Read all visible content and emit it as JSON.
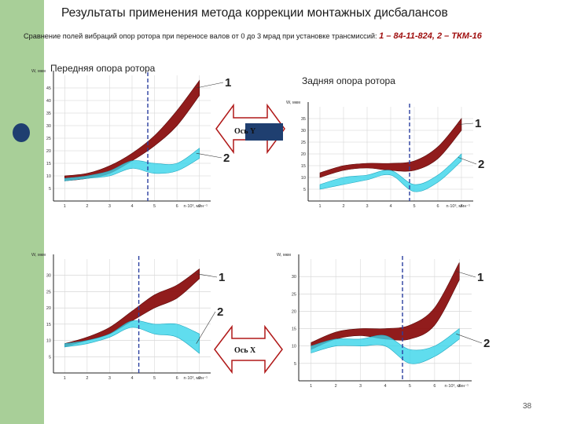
{
  "slide": {
    "title": "Результаты применения метода коррекции монтажных дисбалансов",
    "subtitle_text": "Сравнение полей вибраций опор ротора при переносе валов от 0 до 3 мрад при установке трансмиссий: ",
    "subtitle_series_1_num": "1",
    "subtitle_series_1_name": " – 84-11-824, ",
    "subtitle_series_2_num": "2",
    "subtitle_series_2_name": " – ТКМ-16",
    "front_support_label": "Передняя опора ротора",
    "rear_support_label": "Задняя опора ротора",
    "axis_y_label_top": "Ось Y",
    "axis_x_label_bottom": "Ось X",
    "page_number": "38"
  },
  "colors": {
    "sidebar": "#a8cf98",
    "series_1_band": "#8b1010",
    "series_2_band": "#38d4ea",
    "arrow_fill": "#ffffff",
    "arrow_stroke": "#b01818"
  },
  "chart_data": [
    {
      "type": "area",
      "panel": "top-left",
      "y_unit_label": "W, мкм",
      "y_ticks": [
        "5",
        "10",
        "15",
        "20",
        "25",
        "30",
        "35",
        "40",
        "45"
      ],
      "x_ticks": [
        "1",
        "2",
        "3",
        "4",
        "5",
        "6",
        "7"
      ],
      "x_unit_label": "n·10³, мин⁻¹",
      "ylim": [
        0,
        50
      ],
      "xlim": [
        0.5,
        7.5
      ],
      "series": [
        {
          "name": "1",
          "x": [
            1,
            2,
            3,
            4,
            5,
            6,
            7
          ],
          "lower": [
            8,
            9,
            11,
            16,
            22,
            30,
            42
          ],
          "upper": [
            10,
            11,
            14,
            19,
            26,
            36,
            48
          ]
        },
        {
          "name": "2",
          "x": [
            1,
            2,
            3,
            4,
            5,
            6,
            7
          ],
          "lower": [
            8,
            9,
            10,
            13,
            11,
            12,
            17
          ],
          "upper": [
            9,
            10,
            12,
            16,
            15,
            15,
            21
          ]
        }
      ]
    },
    {
      "type": "area",
      "panel": "top-right",
      "y_unit_label": "W, мкм",
      "y_ticks": [
        "5",
        "10",
        "15",
        "20",
        "25",
        "30",
        "35"
      ],
      "x_ticks": [
        "1",
        "2",
        "3",
        "4",
        "5",
        "6",
        "7"
      ],
      "x_unit_label": "n·10³, мин⁻¹",
      "ylim": [
        0,
        40
      ],
      "xlim": [
        0.5,
        7.5
      ],
      "series": [
        {
          "name": "1",
          "x": [
            1,
            2,
            3,
            4,
            5,
            6,
            7
          ],
          "lower": [
            10,
            13,
            14,
            13,
            13,
            18,
            30
          ],
          "upper": [
            12,
            15,
            16,
            16,
            17,
            23,
            35
          ]
        },
        {
          "name": "2",
          "x": [
            1,
            2,
            3,
            4,
            5,
            6,
            7
          ],
          "lower": [
            5,
            7,
            9,
            11,
            4,
            8,
            17
          ],
          "upper": [
            7,
            10,
            11,
            13,
            7,
            11,
            20
          ]
        }
      ]
    },
    {
      "type": "area",
      "panel": "bottom-left",
      "y_unit_label": "W, мкм",
      "y_ticks": [
        "5",
        "10",
        "15",
        "20",
        "25",
        "30"
      ],
      "x_ticks": [
        "1",
        "2",
        "3",
        "4",
        "5",
        "6",
        "7"
      ],
      "x_unit_label": "n·10³, мин⁻¹",
      "ylim": [
        0,
        35
      ],
      "xlim": [
        0.5,
        7.5
      ],
      "series": [
        {
          "name": "1",
          "x": [
            1,
            2,
            3,
            4,
            5,
            6,
            7
          ],
          "lower": [
            8,
            10,
            12,
            16,
            20,
            23,
            29
          ],
          "upper": [
            9,
            11,
            14,
            19,
            24,
            27,
            32
          ]
        },
        {
          "name": "2",
          "x": [
            1,
            2,
            3,
            4,
            5,
            6,
            7
          ],
          "lower": [
            8,
            9,
            11,
            14,
            12,
            11,
            6
          ],
          "upper": [
            9,
            10,
            12,
            16,
            15,
            15,
            12
          ]
        }
      ]
    },
    {
      "type": "area",
      "panel": "bottom-right",
      "y_unit_label": "W, мкм",
      "y_ticks": [
        "5",
        "10",
        "15",
        "20",
        "25",
        "30"
      ],
      "x_ticks": [
        "1",
        "2",
        "3",
        "4",
        "5",
        "6",
        "7"
      ],
      "x_unit_label": "n·10³, мин⁻¹",
      "ylim": [
        0,
        35
      ],
      "xlim": [
        0.5,
        7.5
      ],
      "series": [
        {
          "name": "1",
          "x": [
            1,
            2,
            3,
            4,
            5,
            6,
            7
          ],
          "lower": [
            9,
            12,
            13,
            12,
            12,
            16,
            29
          ],
          "upper": [
            11,
            14,
            15,
            15,
            16,
            21,
            34
          ]
        },
        {
          "name": "2",
          "x": [
            1,
            2,
            3,
            4,
            5,
            6,
            7
          ],
          "lower": [
            8,
            10,
            10,
            10,
            5,
            7,
            12
          ],
          "upper": [
            10,
            12,
            12,
            13,
            9,
            10,
            15
          ]
        }
      ]
    }
  ]
}
